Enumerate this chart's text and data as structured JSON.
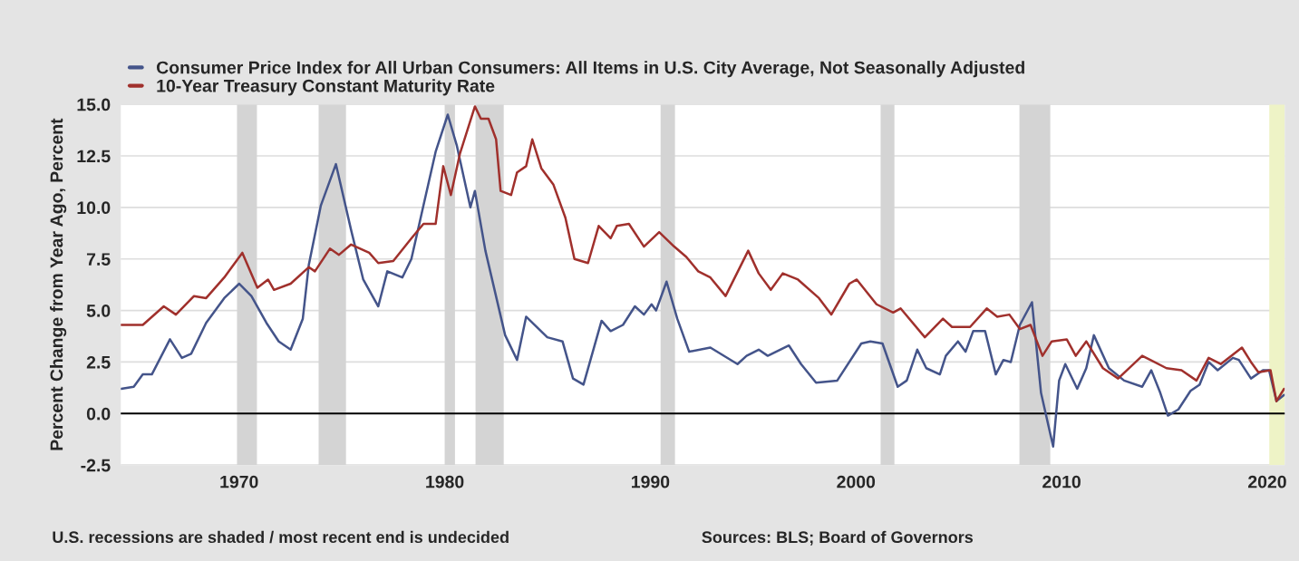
{
  "chart_data": {
    "type": "line",
    "ylabel": "Percent Change from Year Ago, Percent",
    "series": [
      {
        "name": "Consumer Price Index for All Urban Consumers: All Items in U.S. City Average, Not Seasonally Adjusted",
        "color": "#44548a",
        "x": [
          1964.27,
          1964.88,
          1965.32,
          1965.76,
          1966.64,
          1967.22,
          1967.67,
          1968.4,
          1969.28,
          1970.01,
          1970.6,
          1971.33,
          1971.93,
          1972.51,
          1973.1,
          1973.39,
          1973.98,
          1974.71,
          1975.45,
          1976.04,
          1976.77,
          1977.21,
          1977.94,
          1978.38,
          1978.97,
          1979.56,
          1980.15,
          1980.59,
          1981.25,
          1981.47,
          1981.98,
          1982.94,
          1983.52,
          1983.96,
          1984.99,
          1985.73,
          1986.24,
          1986.75,
          1987.63,
          1988.07,
          1988.67,
          1989.25,
          1989.69,
          1990.06,
          1990.28,
          1990.79,
          1991.31,
          1991.89,
          1992.92,
          1994.24,
          1994.68,
          1995.27,
          1995.71,
          1996.74,
          1997.33,
          1998.06,
          1999.09,
          2000.26,
          2000.7,
          2001.29,
          2002.03,
          2002.47,
          2002.98,
          2003.42,
          2004.08,
          2004.37,
          2004.96,
          2005.33,
          2005.7,
          2006.28,
          2006.8,
          2007.17,
          2007.53,
          2007.97,
          2008.56,
          2009.0,
          2009.59,
          2009.88,
          2010.18,
          2010.76,
          2011.2,
          2011.57,
          2012.3,
          2013.04,
          2013.92,
          2014.36,
          2014.8,
          2015.17,
          2015.68,
          2016.27,
          2016.71,
          2017.15,
          2017.59,
          2018.33,
          2018.62,
          2019.21,
          2019.79,
          2020.09,
          2020.45,
          2020.82
        ],
        "values": [
          1.2,
          1.3,
          1.9,
          1.9,
          3.6,
          2.7,
          2.9,
          4.4,
          5.6,
          6.3,
          5.7,
          4.4,
          3.5,
          3.1,
          4.6,
          7.2,
          10.1,
          12.1,
          8.9,
          6.5,
          5.2,
          6.9,
          6.6,
          7.5,
          10.1,
          12.7,
          14.5,
          13.0,
          10.0,
          10.8,
          7.9,
          3.8,
          2.6,
          4.7,
          3.7,
          3.5,
          1.7,
          1.4,
          4.5,
          4.0,
          4.3,
          5.2,
          4.8,
          5.3,
          5.0,
          6.4,
          4.6,
          3.0,
          3.2,
          2.4,
          2.8,
          3.1,
          2.8,
          3.3,
          2.4,
          1.5,
          1.6,
          3.4,
          3.5,
          3.4,
          1.3,
          1.6,
          3.1,
          2.2,
          1.9,
          2.8,
          3.5,
          3.0,
          4.0,
          4.0,
          1.9,
          2.6,
          2.5,
          4.3,
          5.4,
          1.0,
          -1.6,
          1.6,
          2.4,
          1.2,
          2.2,
          3.8,
          2.2,
          1.6,
          1.3,
          2.1,
          1.0,
          -0.1,
          0.2,
          1.1,
          1.4,
          2.5,
          2.1,
          2.7,
          2.6,
          1.7,
          2.1,
          2.1,
          0.6,
          0.9
        ]
      },
      {
        "name": "10-Year Treasury Constant Maturity Rate",
        "color": "#a0302c",
        "x": [
          1964.27,
          1965.32,
          1966.34,
          1966.93,
          1967.81,
          1968.4,
          1969.28,
          1970.16,
          1970.89,
          1971.41,
          1971.7,
          1972.51,
          1973.39,
          1973.69,
          1974.42,
          1974.86,
          1975.45,
          1976.33,
          1976.77,
          1977.5,
          1978.38,
          1978.97,
          1979.56,
          1979.93,
          1980.3,
          1980.74,
          1981.47,
          1981.76,
          1982.13,
          1982.5,
          1982.72,
          1983.23,
          1983.52,
          1983.96,
          1984.26,
          1984.7,
          1985.29,
          1985.87,
          1986.31,
          1986.97,
          1987.49,
          1988.07,
          1988.37,
          1988.96,
          1989.69,
          1990.43,
          1991.16,
          1991.75,
          1992.33,
          1992.92,
          1993.66,
          1994.76,
          1995.27,
          1995.86,
          1996.44,
          1997.18,
          1998.2,
          1998.8,
          1999.68,
          2000.04,
          2001.0,
          2001.81,
          2002.17,
          2003.35,
          2004.23,
          2004.67,
          2005.55,
          2006.36,
          2006.87,
          2007.46,
          2007.97,
          2008.49,
          2009.07,
          2009.52,
          2010.25,
          2010.69,
          2011.2,
          2012.01,
          2012.75,
          2013.92,
          2015.1,
          2015.83,
          2016.56,
          2017.15,
          2017.74,
          2018.77,
          2019.21,
          2019.57,
          2020.16,
          2020.45,
          2020.82
        ],
        "values": [
          4.3,
          4.3,
          5.2,
          4.8,
          5.7,
          5.6,
          6.6,
          7.8,
          6.1,
          6.5,
          6.0,
          6.3,
          7.1,
          6.9,
          8.0,
          7.7,
          8.2,
          7.8,
          7.3,
          7.4,
          8.5,
          9.2,
          9.2,
          12.0,
          10.6,
          12.6,
          14.9,
          14.3,
          14.3,
          13.3,
          10.8,
          10.6,
          11.7,
          12.0,
          13.3,
          11.9,
          11.1,
          9.5,
          7.5,
          7.3,
          9.1,
          8.5,
          9.1,
          9.2,
          8.1,
          8.8,
          8.1,
          7.6,
          6.9,
          6.6,
          5.7,
          7.9,
          6.8,
          6.0,
          6.8,
          6.5,
          5.6,
          4.8,
          6.3,
          6.5,
          5.3,
          4.9,
          5.1,
          3.7,
          4.6,
          4.2,
          4.2,
          5.1,
          4.7,
          4.8,
          4.1,
          4.3,
          2.8,
          3.5,
          3.6,
          2.8,
          3.5,
          2.2,
          1.7,
          2.8,
          2.2,
          2.1,
          1.6,
          2.7,
          2.4,
          3.2,
          2.5,
          2.0,
          2.1,
          0.6,
          1.2
        ]
      }
    ],
    "xlim": [
      1964.25,
      2020.85
    ],
    "xticks": [
      1970,
      1980,
      1990,
      2000,
      2010,
      2020
    ],
    "ylim": [
      -2.5,
      15.0
    ],
    "yticks": [
      {
        "value": -2.5,
        "label": "-2.5"
      },
      {
        "value": 0,
        "label": "0.0"
      },
      {
        "value": 2.5,
        "label": "2.5"
      },
      {
        "value": 5,
        "label": "5.0"
      },
      {
        "value": 7.5,
        "label": "7.5"
      },
      {
        "value": 10,
        "label": "10.0"
      },
      {
        "value": 12.5,
        "label": "12.5"
      },
      {
        "value": 15,
        "label": "15.0"
      }
    ],
    "ref_lines": [
      {
        "axis": "y",
        "value": 0,
        "color": "#000000"
      }
    ],
    "bands": [
      {
        "axis": "x",
        "from": 1969.9,
        "to": 1970.87,
        "color": "#d4d4d4"
      },
      {
        "axis": "x",
        "from": 1973.87,
        "to": 1975.2,
        "color": "#d4d4d4"
      },
      {
        "axis": "x",
        "from": 1980.0,
        "to": 1980.5,
        "color": "#d4d4d4"
      },
      {
        "axis": "x",
        "from": 1981.5,
        "to": 1982.87,
        "color": "#d4d4d4"
      },
      {
        "axis": "x",
        "from": 1990.5,
        "to": 1991.2,
        "color": "#d4d4d4"
      },
      {
        "axis": "x",
        "from": 2001.2,
        "to": 2001.87,
        "color": "#d4d4d4"
      },
      {
        "axis": "x",
        "from": 2007.95,
        "to": 2009.45,
        "color": "#d4d4d4"
      },
      {
        "axis": "x",
        "from": 2020.1,
        "to": 2020.85,
        "color": "#eef3c6"
      }
    ],
    "annotations": [
      "U.S. recessions are shaded / most recent end is undecided",
      "Sources: BLS; Board of Governors"
    ],
    "grid": "y",
    "legend": "top left",
    "line_style": "solid",
    "marker": "none"
  }
}
